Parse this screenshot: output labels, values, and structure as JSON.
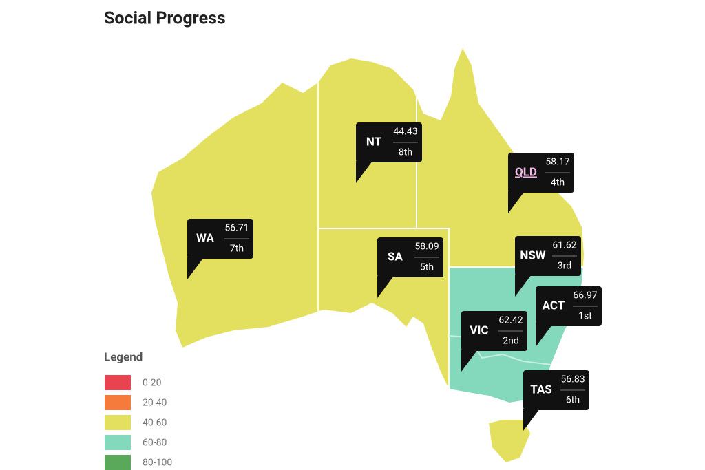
{
  "title": "Social Progress",
  "states": [
    {
      "label": "WA",
      "score": 56.71,
      "rank": "7th"
    },
    {
      "label": "NT",
      "score": 44.43,
      "rank": "8th"
    },
    {
      "label": "SA",
      "score": 58.09,
      "rank": "5th"
    },
    {
      "label": "QLD",
      "score": 58.17,
      "rank": "4th"
    },
    {
      "label": "NSW",
      "score": 61.62,
      "rank": "3rd"
    },
    {
      "label": "ACT",
      "score": 66.97,
      "rank": "1st"
    },
    {
      "label": "VIC",
      "score": 62.42,
      "rank": "2nd"
    },
    {
      "label": "TAS",
      "score": 56.83,
      "rank": "6th"
    }
  ],
  "legend": {
    "title": "Legend",
    "items": [
      {
        "label": "0-20",
        "color": "#e8434f"
      },
      {
        "label": "20-40",
        "color": "#f57b3c"
      },
      {
        "label": "40-60",
        "color": "#e3e060"
      },
      {
        "label": "60-80",
        "color": "#84d8bc"
      },
      {
        "label": "80-100",
        "color": "#5aa95a"
      }
    ]
  }
}
